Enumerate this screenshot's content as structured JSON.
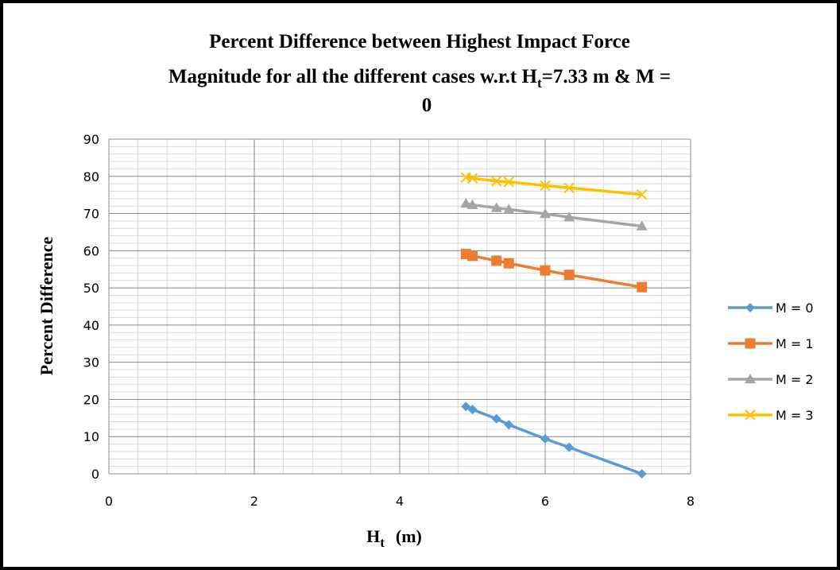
{
  "chart_data": {
    "type": "line",
    "title_line1": "Percent Difference between Highest Impact Force",
    "title_line2_prefix": "Magnitude for all the different cases w.r.t H",
    "title_line2_sub": "t",
    "title_line2_suffix": "=7.33 m & M =",
    "title_line3": "0",
    "xlabel_main": "H",
    "xlabel_sub": "t",
    "xlabel_unit": "(m)",
    "ylabel": "Percent Difference",
    "xlim": [
      0,
      8
    ],
    "ylim": [
      0,
      90
    ],
    "x_ticks": [
      "0",
      "2",
      "4",
      "6",
      "8"
    ],
    "y_ticks": [
      "0",
      "10",
      "20",
      "30",
      "40",
      "50",
      "60",
      "70",
      "80",
      "90"
    ],
    "grid": true,
    "legend_position": "right",
    "series": [
      {
        "name": "M = 0",
        "color": "#5B9BD5",
        "marker": "diamond",
        "x": [
          4.91,
          5.0,
          5.33,
          5.5,
          6.0,
          6.33,
          7.33
        ],
        "y": [
          18.1,
          17.3,
          14.8,
          13.2,
          9.4,
          7.1,
          0
        ]
      },
      {
        "name": "M = 1",
        "color": "#ED7D31",
        "marker": "square",
        "x": [
          4.91,
          5.0,
          5.33,
          5.5,
          6.0,
          6.33,
          7.33
        ],
        "y": [
          59.1,
          58.6,
          57.3,
          56.6,
          54.7,
          53.5,
          50.2
        ]
      },
      {
        "name": "M = 2",
        "color": "#A5A5A5",
        "marker": "triangle",
        "x": [
          4.91,
          5.0,
          5.33,
          5.5,
          6.0,
          6.33,
          7.33
        ],
        "y": [
          72.7,
          72.3,
          71.5,
          71.1,
          69.9,
          69.0,
          66.6
        ]
      },
      {
        "name": "M = 3",
        "color": "#FFC000",
        "marker": "x",
        "x": [
          4.91,
          5.0,
          5.33,
          5.5,
          6.0,
          6.33,
          7.33
        ],
        "y": [
          79.7,
          79.5,
          78.7,
          78.5,
          77.5,
          76.9,
          75.1
        ]
      }
    ]
  }
}
